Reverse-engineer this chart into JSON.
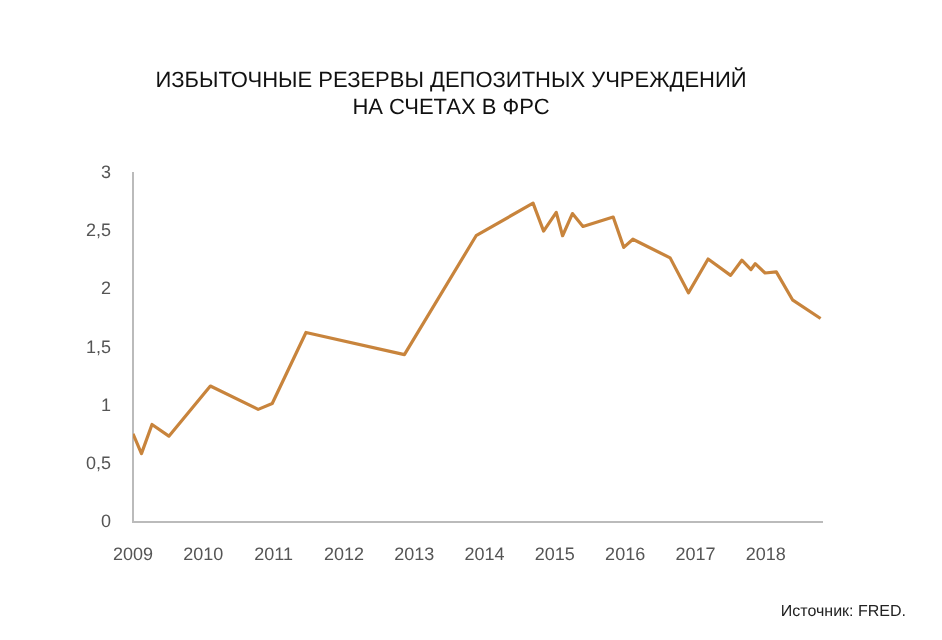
{
  "chart_data": {
    "type": "line",
    "title": "ИЗБЫТОЧНЫЕ РЕЗЕРВЫ ДЕПОЗИТНЫХ УЧРЕЖДЕНИЙ\nНА СЧЕТАХ В ФРС",
    "x": [
      2009.0,
      2009.12,
      2009.27,
      2009.51,
      2010.1,
      2010.78,
      2010.98,
      2011.46,
      2012.86,
      2013.88,
      2014.69,
      2014.84,
      2015.02,
      2015.11,
      2015.25,
      2015.4,
      2015.83,
      2015.98,
      2016.11,
      2016.64,
      2016.9,
      2017.18,
      2017.5,
      2017.66,
      2017.79,
      2017.85,
      2017.99,
      2018.15,
      2018.38,
      2018.78
    ],
    "series": [
      {
        "color": "#c8843c",
        "values": [
          0.76,
          0.59,
          0.84,
          0.74,
          1.17,
          0.97,
          1.02,
          1.63,
          1.44,
          2.46,
          2.74,
          2.5,
          2.66,
          2.46,
          2.65,
          2.54,
          2.62,
          2.36,
          2.43,
          2.27,
          1.97,
          2.26,
          2.12,
          2.25,
          2.17,
          2.22,
          2.14,
          2.15,
          1.91,
          1.75
        ]
      }
    ],
    "xlim": [
      2009,
      2018.8
    ],
    "xticks": [
      2009,
      2010,
      2011,
      2012,
      2013,
      2014,
      2015,
      2016,
      2017,
      2018
    ],
    "ylim": [
      0,
      3
    ],
    "yticks": [
      0,
      {
        "value": 0.5,
        "label": "0,5"
      },
      1,
      {
        "value": 1.5,
        "label": "1,5"
      },
      2,
      {
        "value": 2.5,
        "label": "2,5"
      },
      3
    ],
    "grid": false,
    "legend": false,
    "marker": "none",
    "line_style": "solid",
    "annotations": [
      "Источник: FRED."
    ]
  }
}
